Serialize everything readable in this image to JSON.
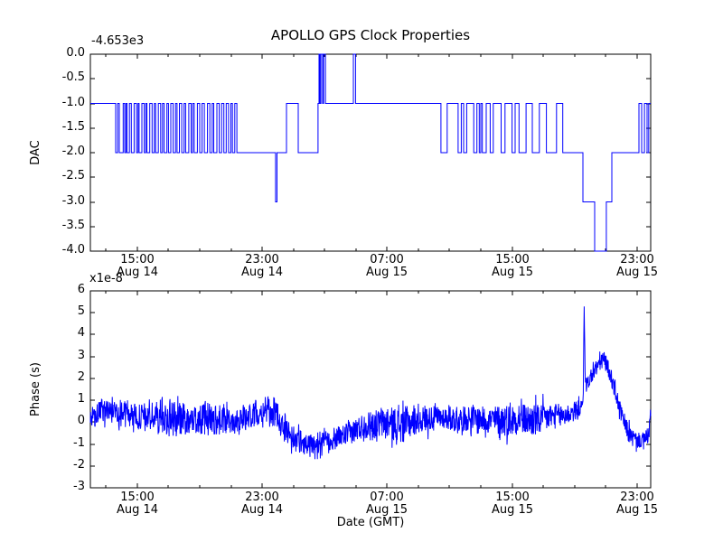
{
  "title": "APOLLO GPS Clock Properties",
  "line_color": "#0000ff",
  "axis_color": "#000000",
  "background": "#ffffff",
  "xticks": {
    "positions_hours": [
      3,
      11,
      19,
      27,
      35
    ],
    "time_labels": [
      "15:00",
      "23:00",
      "07:00",
      "15:00",
      "23:00"
    ],
    "date_labels": [
      "Aug 14",
      "Aug 14",
      "Aug 15",
      "Aug 15",
      "Aug 15"
    ],
    "minor_positions_hours": [
      1,
      5,
      7,
      9,
      13,
      15,
      17,
      21,
      23,
      25,
      29,
      31,
      33
    ]
  },
  "chart_data": [
    {
      "type": "line",
      "subplot": "top",
      "title": "APOLLO GPS Clock Properties",
      "ylabel": "DAC",
      "y_offset_label": "-4.653e3",
      "ylim": [
        -4.0,
        0.0
      ],
      "xlim": [
        0,
        35.88
      ],
      "grid": false,
      "yticks": {
        "values": [
          0.0,
          -0.5,
          -1.0,
          -1.5,
          -2.0,
          -2.5,
          -3.0,
          -3.5,
          -4.0
        ],
        "labels": [
          "0.0",
          "-0.5",
          "-1.0",
          "-1.5",
          "-2.0",
          "-2.5",
          "-3.0",
          "-3.5",
          "-4.0"
        ]
      },
      "series_name": "DAC steps (offset -4.653e3)",
      "step_breakpoints": [
        [
          0.0,
          -1
        ],
        [
          1.62,
          -2
        ],
        [
          1.75,
          -1
        ],
        [
          1.85,
          -2
        ],
        [
          2.1,
          -1
        ],
        [
          2.2,
          -2
        ],
        [
          2.28,
          -1
        ],
        [
          2.35,
          -2
        ],
        [
          2.5,
          -1
        ],
        [
          2.62,
          -2
        ],
        [
          2.8,
          -1
        ],
        [
          2.95,
          -2
        ],
        [
          3.05,
          -1
        ],
        [
          3.12,
          -2
        ],
        [
          3.3,
          -1
        ],
        [
          3.45,
          -2
        ],
        [
          3.55,
          -1
        ],
        [
          3.62,
          -2
        ],
        [
          3.8,
          -1
        ],
        [
          3.95,
          -2
        ],
        [
          4.1,
          -1
        ],
        [
          4.18,
          -2
        ],
        [
          4.35,
          -1
        ],
        [
          4.5,
          -2
        ],
        [
          4.62,
          -1
        ],
        [
          4.72,
          -2
        ],
        [
          4.9,
          -1
        ],
        [
          5.0,
          -2
        ],
        [
          5.15,
          -1
        ],
        [
          5.3,
          -2
        ],
        [
          5.45,
          -1
        ],
        [
          5.55,
          -2
        ],
        [
          5.7,
          -1
        ],
        [
          5.85,
          -2
        ],
        [
          6.0,
          -1
        ],
        [
          6.1,
          -2
        ],
        [
          6.3,
          -1
        ],
        [
          6.45,
          -2
        ],
        [
          6.55,
          -1
        ],
        [
          6.65,
          -2
        ],
        [
          6.85,
          -1
        ],
        [
          7.0,
          -2
        ],
        [
          7.15,
          -1
        ],
        [
          7.3,
          -2
        ],
        [
          7.5,
          -1
        ],
        [
          7.65,
          -2
        ],
        [
          7.8,
          -1
        ],
        [
          7.9,
          -2
        ],
        [
          8.1,
          -1
        ],
        [
          8.25,
          -2
        ],
        [
          8.4,
          -1
        ],
        [
          8.55,
          -2
        ],
        [
          8.7,
          -1
        ],
        [
          8.85,
          -2
        ],
        [
          9.0,
          -1
        ],
        [
          9.1,
          -2
        ],
        [
          9.25,
          -1
        ],
        [
          9.38,
          -2
        ],
        [
          11.86,
          -3
        ],
        [
          11.95,
          -2
        ],
        [
          12.56,
          -1
        ],
        [
          13.31,
          -2
        ],
        [
          14.58,
          -1
        ],
        [
          14.64,
          0
        ],
        [
          14.7,
          -1
        ],
        [
          14.76,
          0
        ],
        [
          14.87,
          -1
        ],
        [
          14.93,
          0
        ],
        [
          15.05,
          -1
        ],
        [
          16.84,
          0
        ],
        [
          16.98,
          -1
        ],
        [
          22.45,
          -2
        ],
        [
          22.85,
          -1
        ],
        [
          23.55,
          -2
        ],
        [
          23.75,
          -1
        ],
        [
          23.9,
          -2
        ],
        [
          24.1,
          -1
        ],
        [
          24.55,
          -2
        ],
        [
          24.75,
          -1
        ],
        [
          24.9,
          -2
        ],
        [
          25.0,
          -1
        ],
        [
          25.1,
          -2
        ],
        [
          25.35,
          -1
        ],
        [
          25.6,
          -2
        ],
        [
          25.8,
          -1
        ],
        [
          26.3,
          -2
        ],
        [
          26.55,
          -1
        ],
        [
          27.0,
          -2
        ],
        [
          27.2,
          -1
        ],
        [
          27.45,
          -2
        ],
        [
          27.9,
          -1
        ],
        [
          28.3,
          -2
        ],
        [
          28.75,
          -1
        ],
        [
          29.2,
          -2
        ],
        [
          29.85,
          -1
        ],
        [
          30.25,
          -2
        ],
        [
          31.54,
          -3
        ],
        [
          32.29,
          -4
        ],
        [
          33.04,
          -3
        ],
        [
          33.39,
          -2
        ],
        [
          35.13,
          -1
        ],
        [
          35.3,
          -2
        ],
        [
          35.48,
          -1
        ],
        [
          35.65,
          -2
        ],
        [
          35.75,
          -1
        ]
      ]
    },
    {
      "type": "line",
      "subplot": "bottom",
      "ylabel": "Phase (s)",
      "y_offset_label": "x1e-8",
      "xlabel": "Date (GMT)",
      "ylim": [
        -3,
        6
      ],
      "xlim": [
        0,
        35.88
      ],
      "grid": false,
      "yticks": {
        "values": [
          6,
          5,
          4,
          3,
          2,
          1,
          0,
          -1,
          -2,
          -3
        ],
        "labels": [
          "6",
          "5",
          "4",
          "3",
          "2",
          "1",
          "0",
          "-1",
          "-2",
          "-3"
        ]
      },
      "series_name": "Phase (s) x1e-8",
      "samples": 1795,
      "noise_seed": 987654321,
      "peak": {
        "t_hours": 31.62,
        "value": 5.3
      },
      "profile_points_t_mean_amp": [
        [
          0.0,
          0.0,
          0.45
        ],
        [
          0.7,
          0.55,
          0.5
        ],
        [
          2.0,
          0.5,
          0.55
        ],
        [
          3.0,
          0.25,
          0.55
        ],
        [
          4.8,
          0.25,
          0.8
        ],
        [
          5.3,
          0.2,
          0.9
        ],
        [
          6.5,
          0.1,
          0.6
        ],
        [
          7.6,
          0.15,
          0.8
        ],
        [
          8.5,
          0.05,
          0.6
        ],
        [
          10.0,
          0.2,
          0.55
        ],
        [
          11.0,
          0.55,
          0.6
        ],
        [
          11.8,
          0.45,
          0.7
        ],
        [
          12.4,
          -0.2,
          0.6
        ],
        [
          13.0,
          -0.75,
          0.5
        ],
        [
          14.0,
          -1.05,
          0.55
        ],
        [
          14.4,
          -1.2,
          0.6
        ],
        [
          15.2,
          -0.85,
          0.5
        ],
        [
          16.5,
          -0.55,
          0.5
        ],
        [
          17.5,
          -0.15,
          0.6
        ],
        [
          19.0,
          -0.05,
          0.7
        ],
        [
          20.0,
          -0.1,
          0.85
        ],
        [
          21.0,
          0.1,
          0.6
        ],
        [
          22.5,
          0.25,
          0.5
        ],
        [
          23.5,
          0.1,
          0.6
        ],
        [
          24.5,
          0.2,
          0.55
        ],
        [
          25.5,
          0.1,
          0.6
        ],
        [
          26.5,
          0.1,
          0.75
        ],
        [
          27.5,
          0.15,
          0.7
        ],
        [
          28.5,
          0.05,
          0.75
        ],
        [
          29.5,
          0.25,
          0.6
        ],
        [
          30.5,
          0.35,
          0.5
        ],
        [
          31.2,
          0.55,
          0.45
        ],
        [
          31.55,
          0.8,
          0.2
        ],
        [
          31.62,
          5.3,
          0.05
        ],
        [
          31.7,
          1.6,
          0.3
        ],
        [
          32.0,
          2.0,
          0.35
        ],
        [
          32.5,
          2.6,
          0.4
        ],
        [
          32.8,
          2.9,
          0.4
        ],
        [
          33.1,
          2.6,
          0.35
        ],
        [
          33.5,
          1.7,
          0.4
        ],
        [
          34.0,
          0.3,
          0.45
        ],
        [
          34.5,
          -0.55,
          0.4
        ],
        [
          35.0,
          -0.85,
          0.35
        ],
        [
          35.5,
          -0.8,
          0.35
        ],
        [
          35.75,
          -0.55,
          0.4
        ],
        [
          35.9,
          0.5,
          0.4
        ]
      ]
    }
  ]
}
